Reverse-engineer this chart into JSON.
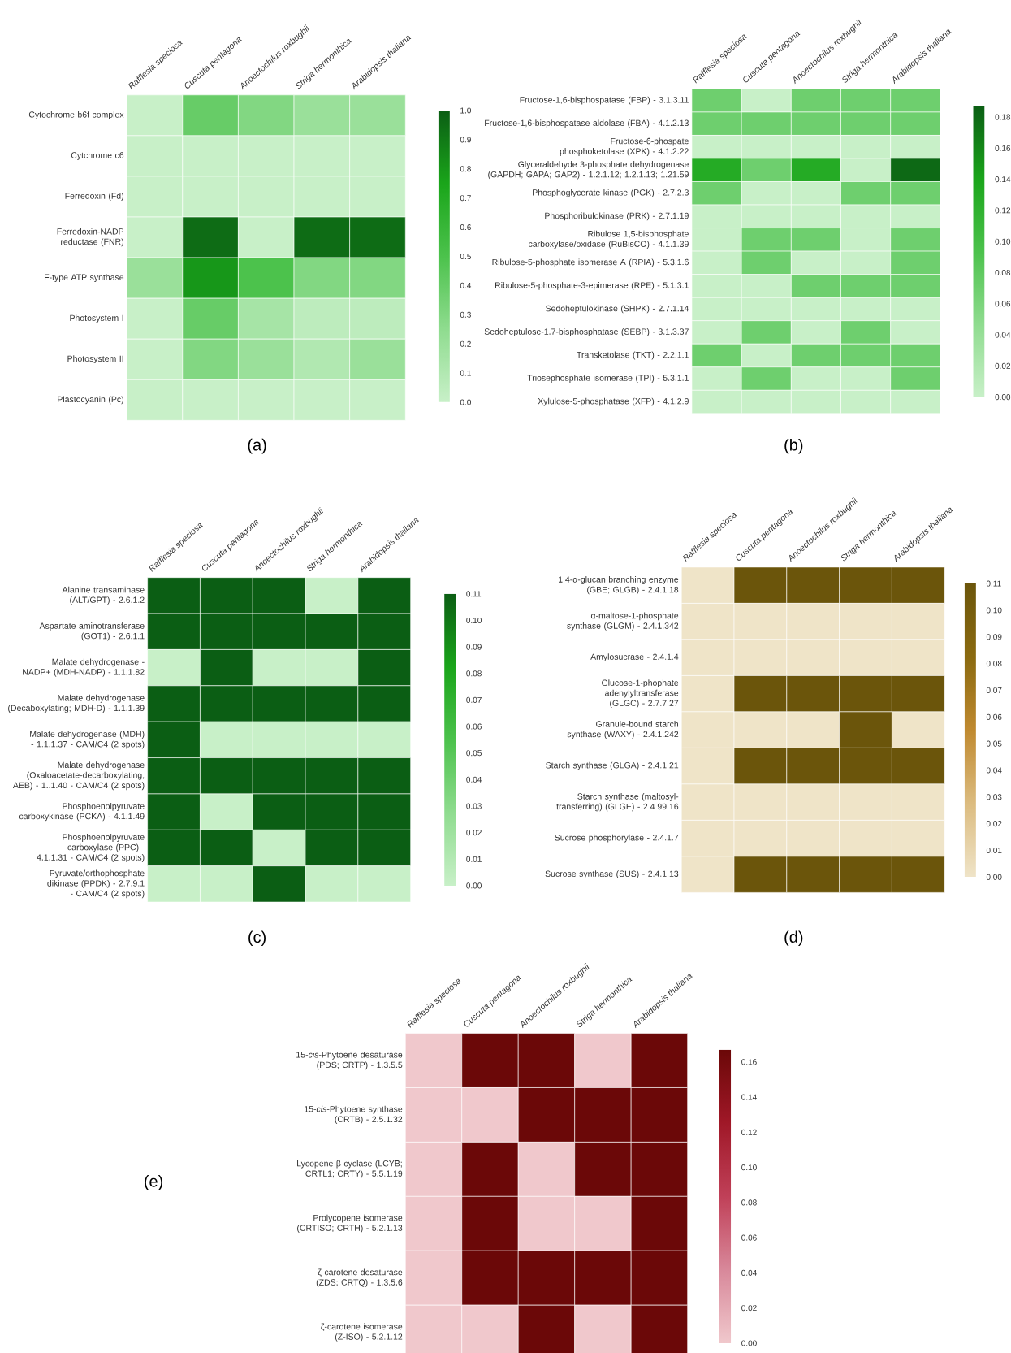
{
  "chart_data": [
    {
      "type": "heatmap",
      "categories": [
        "Rafflesia speciosa",
        "Cuscuta pentagona",
        "Anoectochilus roxbughii",
        "Striga hermonthica",
        "Arabidopsis thaliana"
      ],
      "y_categories": [
        "Cytochrome b6f complex",
        "Cytchrome c6",
        "Ferredoxin (Fd)",
        "Ferredoxin-NADP reductase (FNR)",
        "F-type ATP synthase",
        "Photosystem I",
        "Photosystem II",
        "Plastocyanin (Pc)"
      ],
      "cells": [
        [
          0.0,
          0.4,
          0.3,
          0.2,
          0.2
        ],
        [
          0.0,
          0.0,
          0.0,
          0.0,
          0.0
        ],
        [
          0.0,
          0.0,
          0.0,
          0.0,
          0.0
        ],
        [
          0.0,
          0.95,
          0.0,
          0.95,
          0.95
        ],
        [
          0.2,
          0.8,
          0.5,
          0.3,
          0.3
        ],
        [
          0.0,
          0.4,
          0.15,
          0.05,
          0.05
        ],
        [
          0.0,
          0.3,
          0.2,
          0.1,
          0.2
        ],
        [
          0.0,
          0.0,
          0.0,
          0.0,
          0.0
        ]
      ],
      "clim": [
        0,
        1.0
      ],
      "cticks": [
        {
          "value": 0,
          "label": "0.0"
        },
        0.1,
        0.2,
        0.3,
        0.4,
        0.5,
        0.6,
        0.7,
        0.8,
        0.9,
        {
          "value": 1,
          "label": "1.0"
        }
      ],
      "colors": [
        "#c8f0c8",
        "#8fdc8f",
        "#4cc24c",
        "#1aa51a",
        "#0b5e14"
      ],
      "annotations": [
        "(a)"
      ]
    },
    {
      "type": "heatmap",
      "categories": [
        "Rafflesia speciosa",
        "Cuscuta pentagona",
        "Anoectochilus roxbughii",
        "Striga hermonthica",
        "Arabidopsis thaliana"
      ],
      "y_categories": [
        "Fructose-1,6-bisphospatase (FBP) - 3.1.3.11",
        "Fructose-1,6-bisphospatase aldolase (FBA) - 4.1.2.13",
        "Fructose-6-phospate phosphoketolase (XPK) - 4.1.2.22",
        "Glyceraldehyde 3-phosphate dehydrogenase (GAPDH; GAPA; GAP2) - 1.2.1.12; 1.2.1.13; 1.21.59",
        "Phosphoglycerate kinase (PGK) - 2.7.2.3",
        "Phosphoribulokinase (PRK) - 2.7.1.19",
        "Ribulose 1,5-bisphosphate carboxylase/oxidase (RuBisCO) - 4.1.1.39",
        "Ribulose-5-phosphate isomerase A (RPIA) - 5.3.1.6",
        "Ribulose-5-phosphate-3-epimerase (RPE) - 5.1.3.1",
        "Sedoheptulokinase (SHPK) - 2.7.1.14",
        "Sedoheptulose-1.7-bisphosphatase (SEBP) - 3.1.3.37",
        "Transketolase (TKT) - 2.2.1.1",
        "Triosephosphate isomerase (TPI) - 5.3.1.1",
        "Xylulose-5-phosphatase (XFP) - 4.1.2.9"
      ],
      "cells": [
        [
          0.07,
          0.0,
          0.07,
          0.07,
          0.07
        ],
        [
          0.07,
          0.07,
          0.07,
          0.07,
          0.07
        ],
        [
          0.0,
          0.0,
          0.0,
          0.0,
          0.0
        ],
        [
          0.13,
          0.07,
          0.13,
          0.0,
          0.18
        ],
        [
          0.07,
          0.0,
          0.0,
          0.07,
          0.07
        ],
        [
          0.0,
          0.0,
          0.0,
          0.0,
          0.0
        ],
        [
          0.0,
          0.07,
          0.07,
          0.0,
          0.07
        ],
        [
          0.0,
          0.07,
          0.0,
          0.0,
          0.07
        ],
        [
          0.0,
          0.0,
          0.07,
          0.07,
          0.07
        ],
        [
          0.0,
          0.0,
          0.0,
          0.0,
          0.0
        ],
        [
          0.0,
          0.07,
          0.0,
          0.07,
          0.0
        ],
        [
          0.07,
          0.0,
          0.07,
          0.07,
          0.07
        ],
        [
          0.0,
          0.07,
          0.0,
          0.0,
          0.07
        ],
        [
          0.0,
          0.0,
          0.0,
          0.0,
          0.0
        ]
      ],
      "clim": [
        0,
        0.187
      ],
      "cticks": [
        {
          "value": 0,
          "label": "0.00"
        },
        0.02,
        0.04,
        0.06,
        0.08,
        {
          "value": 0.1,
          "label": "0.10"
        },
        0.12,
        0.14,
        0.16,
        0.18
      ],
      "colors": [
        "#c8f0c8",
        "#8fdc8f",
        "#4cc24c",
        "#1aa51a",
        "#0b5e14"
      ],
      "annotations": [
        "(b)"
      ]
    },
    {
      "type": "heatmap",
      "categories": [
        "Rafflesia speciosa",
        "Cuscuta pentagona",
        "Anoectochilus roxbughii",
        "Striga hermonthica",
        "Arabidopsis thaliana"
      ],
      "y_categories": [
        "Alanine transaminase (ALT/GPT) - 2.6.1.2",
        "Aspartate aminotransferase (GOT1) - 2.6.1.1",
        "Malate dehydrogenase - NADP+ (MDH-NADP) - 1.1.1.82",
        "Malate dehydrogenase (Decaboxylating; MDH-D) - 1.1.1.39",
        "Malate dehydrogenase (MDH) - 1.1.1.37 - CAM/C4 (2 spots)",
        "Malate dehydrogenase (Oxaloacetate-decarboxylating; AEB) - 1..1.40 - CAM/C4 (2 spots)",
        "Phosphoenolpyruvate carboxykinase (PCKA) - 4.1.1.49",
        "Phosphoenolpyruvate carboxylase (PPC) - 4.1.1.31 - CAM/C4 (2 spots)",
        "Pyruvate/orthophosphate dikinase (PPDK) - 2.7.9.1 - CAM/C4 (2 spots)"
      ],
      "cells": [
        [
          0.11,
          0.11,
          0.11,
          0.0,
          0.11
        ],
        [
          0.11,
          0.11,
          0.11,
          0.11,
          0.11
        ],
        [
          0.0,
          0.11,
          0.0,
          0.0,
          0.11
        ],
        [
          0.11,
          0.11,
          0.11,
          0.11,
          0.11
        ],
        [
          0.11,
          0.0,
          0.0,
          0.0,
          0.0
        ],
        [
          0.11,
          0.11,
          0.11,
          0.11,
          0.11
        ],
        [
          0.11,
          0.0,
          0.11,
          0.11,
          0.11
        ],
        [
          0.11,
          0.11,
          0.0,
          0.11,
          0.11
        ],
        [
          0.0,
          0.0,
          0.11,
          0.0,
          0.0
        ]
      ],
      "clim": [
        0,
        0.11
      ],
      "cticks": [
        {
          "value": 0,
          "label": "0.00"
        },
        0.01,
        0.02,
        0.03,
        0.04,
        0.05,
        0.06,
        0.07,
        0.08,
        0.09,
        {
          "value": 0.1,
          "label": "0.10"
        },
        0.11
      ],
      "colors": [
        "#c8f0c8",
        "#8fdc8f",
        "#4cc24c",
        "#1aa51a",
        "#0b5e14"
      ],
      "annotations": [
        "(c)"
      ]
    },
    {
      "type": "heatmap",
      "categories": [
        "Rafflesia speciosa",
        "Cuscuta pentagona",
        "Anoectochilus roxbughii",
        "Striga hermonthica",
        "Arabidopsis thaliana"
      ],
      "y_categories": [
        "1,4-α-glucan branching enzyme (GBE; GLGB) - 2.4.1.18",
        "α-maltose-1-phosphate synthase (GLGM) - 2.4.1.342",
        "Amylosucrase - 2.4.1.4",
        "Glucose-1-phophate adenylyltransferase (GLGC) - 2.7.7.27",
        "Granule-bound starch synthase (WAXY) - 2.4.1.242",
        "Starch synthase (GLGA) - 2.4.1.21",
        "Starch synthase (maltosyl-transferring) (GLGE) - 2.4.99.16",
        "Sucrose phosphorylase - 2.4.1.7",
        "Sucrose synthase (SUS) - 2.4.1.13"
      ],
      "cells": [
        [
          0.0,
          0.11,
          0.11,
          0.11,
          0.11
        ],
        [
          0.0,
          0.0,
          0.0,
          0.0,
          0.0
        ],
        [
          0.0,
          0.0,
          0.0,
          0.0,
          0.0
        ],
        [
          0.0,
          0.11,
          0.11,
          0.11,
          0.11
        ],
        [
          0.0,
          0.0,
          0.0,
          0.11,
          0.0
        ],
        [
          0.0,
          0.11,
          0.11,
          0.11,
          0.11
        ],
        [
          0.0,
          0.0,
          0.0,
          0.0,
          0.0
        ],
        [
          0.0,
          0.0,
          0.0,
          0.0,
          0.0
        ],
        [
          0.0,
          0.11,
          0.11,
          0.11,
          0.11
        ]
      ],
      "clim": [
        0,
        0.11
      ],
      "cticks": [
        {
          "value": 0,
          "label": "0.00"
        },
        0.01,
        0.02,
        0.03,
        0.04,
        0.05,
        0.06,
        0.07,
        0.08,
        0.09,
        {
          "value": 0.1,
          "label": "0.10"
        },
        0.11
      ],
      "colors": [
        "#efe4c8",
        "#dcbc80",
        "#c08a30",
        "#8a6a10",
        "#6b550b"
      ],
      "annotations": [
        "(d)"
      ]
    },
    {
      "type": "heatmap",
      "categories": [
        "Rafflesia speciosa",
        "Cuscuta pentagona",
        "Anoectochilus roxbughii",
        "Striga hermonthica",
        "Arabidopsis thaliana"
      ],
      "y_categories": [
        "15-*cis*-Phytoene desaturase (PDS; CRTP) - 1.3.5.5",
        "15-*cis*-Phytoene synthase (CRTB) - 2.5.1.32",
        "Lycopene β-cyclase (LCYB; CRTL1; CRTY) - 5.5.1.19",
        "Prolycopene isomerase (CRTISO; CRTH) - 5.2.1.13",
        "ζ-carotene desaturase (ZDS; CRTQ) - 1.3.5.6",
        "ζ-carotene isomerase (Z-ISO) - 5.2.1.12"
      ],
      "cells": [
        [
          0.0,
          0.167,
          0.167,
          0.0,
          0.167
        ],
        [
          0.0,
          0.0,
          0.167,
          0.167,
          0.167
        ],
        [
          0.0,
          0.167,
          0.0,
          0.167,
          0.167
        ],
        [
          0.0,
          0.167,
          0.0,
          0.0,
          0.167
        ],
        [
          0.0,
          0.167,
          0.167,
          0.167,
          0.167
        ],
        [
          0.0,
          0.0,
          0.167,
          0.0,
          0.167
        ]
      ],
      "clim": [
        0,
        0.167
      ],
      "cticks": [
        {
          "value": 0,
          "label": "0.00"
        },
        0.02,
        0.04,
        0.06,
        0.08,
        {
          "value": 0.1,
          "label": "0.10"
        },
        0.12,
        0.14,
        0.16
      ],
      "colors": [
        "#f0c8cc",
        "#d8889a",
        "#c04058",
        "#a01828",
        "#6b0808"
      ],
      "annotations": [
        "(e)"
      ]
    }
  ]
}
